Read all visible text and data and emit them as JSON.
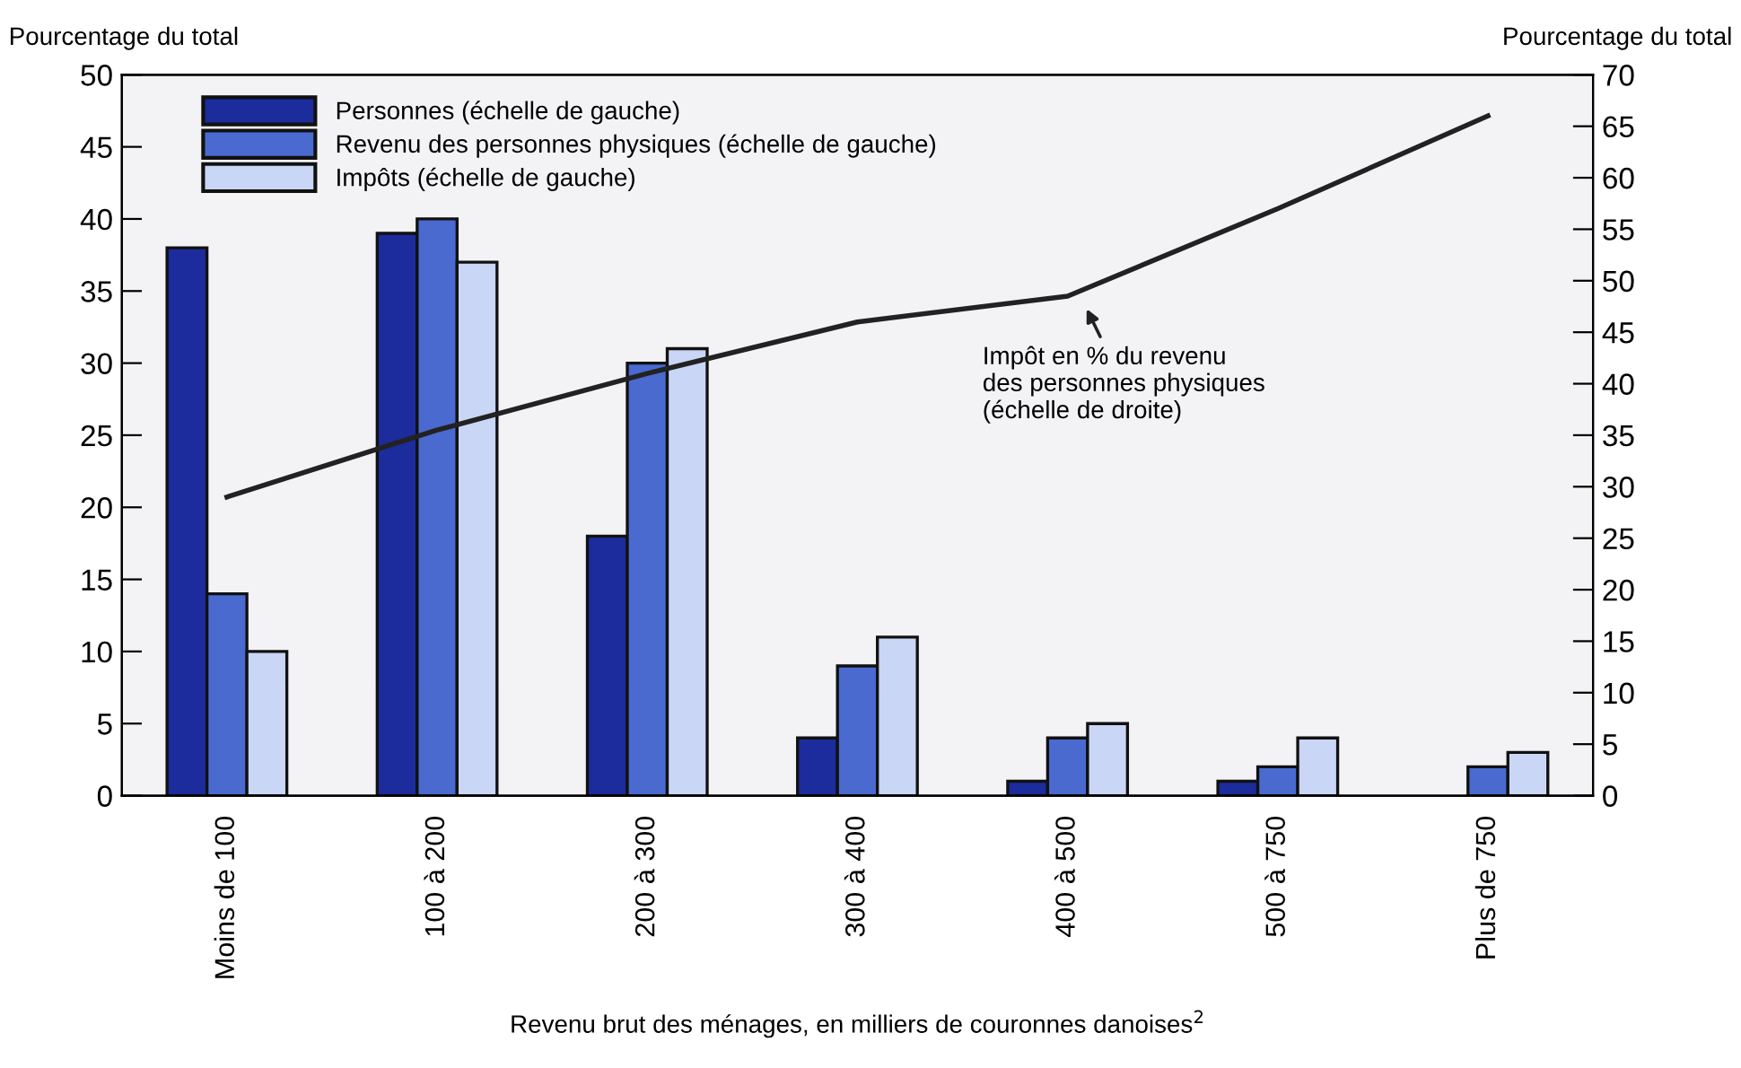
{
  "chart_data": {
    "type": "bar",
    "categories": [
      "Moins de 100",
      "100 à 200",
      "200 à 300",
      "300 à 400",
      "400 à 500",
      "500 à 750",
      "Plus de 750"
    ],
    "series": [
      {
        "name": "Personnes (échelle de gauche)",
        "color": "#1c2c9c",
        "values": [
          38,
          39,
          18,
          4,
          1,
          1,
          null
        ]
      },
      {
        "name": "Revenu des personnes physiques (échelle de gauche)",
        "color": "#4a6ad0",
        "values": [
          14,
          40,
          30,
          9,
          4,
          2,
          2
        ]
      },
      {
        "name": "Impôts (échelle de gauche)",
        "color": "#cad6f6",
        "values": [
          10,
          37,
          31,
          11,
          5,
          4,
          3
        ]
      },
      {
        "type": "line",
        "axis": "y2",
        "color": "#222222",
        "values": [
          29,
          35.5,
          41,
          46,
          48.5,
          57,
          66
        ]
      }
    ],
    "ylabel": "Pourcentage du total",
    "y2label": "Pourcentage du total",
    "xlabel": "Revenu brut des ménages, en milliers de couronnes danoises$^{2}$",
    "ylim": [
      0,
      50
    ],
    "yticks": [
      0,
      5,
      10,
      15,
      20,
      25,
      30,
      35,
      40,
      45,
      50
    ],
    "y2lim": [
      0,
      70
    ],
    "y2ticks": [
      0,
      5,
      10,
      15,
      20,
      25,
      30,
      35,
      40,
      45,
      50,
      55,
      60,
      65,
      70
    ],
    "annotations": [
      "Impôt en % du revenu\ndes personnes physiques\n(échelle de droite)"
    ],
    "legend": "top left",
    "grid": false
  }
}
